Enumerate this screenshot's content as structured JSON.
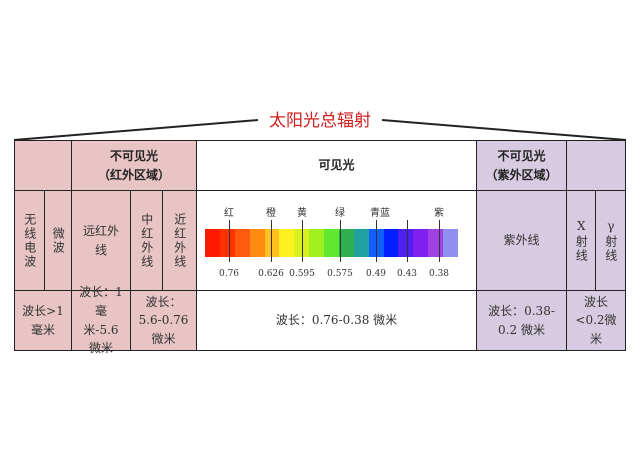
{
  "title": "太阳光总辐射",
  "colors": {
    "title": "#d02020",
    "infrared_bg": "#e8c4c4",
    "ultraviolet_bg": "#d6cbe0",
    "border": "#222222"
  },
  "infrared": {
    "header_line1": "不可见光",
    "header_line2": "（红外区域）",
    "radio": "无线电波",
    "microwave": "微波",
    "far_ir": "远红外线",
    "mid_ir": "中红外线",
    "near_ir": "近红外线",
    "radio_micro_wavelength": "波长>1毫米",
    "far_ir_wavelength": "波长：1毫米-5.6微米",
    "mid_near_ir_wavelength": "波长：5.6-0.76微米"
  },
  "visible": {
    "header": "可见光",
    "wavelength": "波长：0.76-0.38 微米",
    "color_labels": [
      "红",
      "橙",
      "黄",
      "绿",
      "青蓝",
      "紫"
    ],
    "tick_values": [
      "0.76",
      "0.626",
      "0.595",
      "0.575",
      "0.49",
      "0.43",
      "0.38"
    ],
    "spectrum_colors": [
      "#ff1a00",
      "#ff3300",
      "#ff5a10",
      "#ff8a10",
      "#ffc020",
      "#fff020",
      "#d8f020",
      "#a0f020",
      "#60e830",
      "#30b050",
      "#20a0a0",
      "#1060ff",
      "#0020ff",
      "#5020f0",
      "#8020f0",
      "#a040e0",
      "#9090f0"
    ]
  },
  "ultraviolet": {
    "header_line1": "不可见光",
    "header_line2": "（紫外区域）",
    "uv": "紫外线",
    "xray": "X射线",
    "gamma": "γ射线",
    "uv_wavelength": "波长：0.38-0.2 微米",
    "xray_gamma_wavelength": "波长<0.2微米"
  }
}
